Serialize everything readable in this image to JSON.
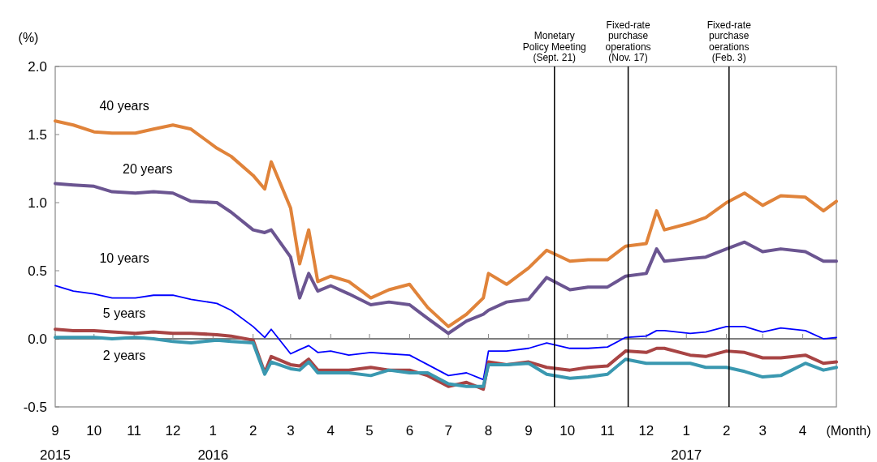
{
  "chart_data": {
    "type": "line",
    "xlabel": "(Month)",
    "ylabel": "(%)",
    "x": [
      "2015-09-01",
      "2015-09-15",
      "2015-10-01",
      "2015-10-15",
      "2015-11-02",
      "2015-11-16",
      "2015-12-01",
      "2015-12-15",
      "2016-01-04",
      "2016-01-15",
      "2016-02-01",
      "2016-02-10",
      "2016-02-15",
      "2016-03-01",
      "2016-03-08",
      "2016-03-15",
      "2016-03-22",
      "2016-04-01",
      "2016-04-15",
      "2016-05-02",
      "2016-05-16",
      "2016-06-01",
      "2016-06-15",
      "2016-07-01",
      "2016-07-15",
      "2016-07-28",
      "2016-08-01",
      "2016-08-15",
      "2016-09-01",
      "2016-09-15",
      "2016-10-03",
      "2016-10-17",
      "2016-11-01",
      "2016-11-15",
      "2016-12-01",
      "2016-12-09",
      "2016-12-15",
      "2017-01-04",
      "2017-01-16",
      "2017-02-01",
      "2017-02-15",
      "2017-03-01",
      "2017-03-15",
      "2017-04-03",
      "2017-04-17",
      "2017-04-27"
    ],
    "series": [
      {
        "name": "40 years",
        "color": "#e0833a",
        "values": [
          1.6,
          1.57,
          1.52,
          1.51,
          1.51,
          1.54,
          1.57,
          1.54,
          1.4,
          1.34,
          1.2,
          1.1,
          1.3,
          0.96,
          0.55,
          0.8,
          0.42,
          0.46,
          0.42,
          0.3,
          0.36,
          0.4,
          0.23,
          0.09,
          0.18,
          0.3,
          0.48,
          0.4,
          0.52,
          0.65,
          0.57,
          0.58,
          0.58,
          0.68,
          0.7,
          0.94,
          0.8,
          0.85,
          0.89,
          1.0,
          1.07,
          0.98,
          1.05,
          1.04,
          0.94,
          1.01
        ]
      },
      {
        "name": "20 years",
        "color": "#6b5591",
        "values": [
          1.14,
          1.13,
          1.12,
          1.08,
          1.07,
          1.08,
          1.07,
          1.01,
          1.0,
          0.93,
          0.8,
          0.78,
          0.8,
          0.6,
          0.3,
          0.48,
          0.35,
          0.39,
          0.33,
          0.25,
          0.27,
          0.25,
          0.15,
          0.04,
          0.13,
          0.18,
          0.21,
          0.27,
          0.29,
          0.45,
          0.36,
          0.38,
          0.38,
          0.46,
          0.48,
          0.66,
          0.57,
          0.59,
          0.6,
          0.66,
          0.71,
          0.64,
          0.66,
          0.64,
          0.57,
          0.57
        ]
      },
      {
        "name": "10 years",
        "color": "#0000ff",
        "values": [
          0.39,
          0.35,
          0.33,
          0.3,
          0.3,
          0.32,
          0.32,
          0.29,
          0.26,
          0.21,
          0.09,
          0.01,
          0.07,
          -0.11,
          -0.08,
          -0.05,
          -0.1,
          -0.09,
          -0.12,
          -0.1,
          -0.11,
          -0.12,
          -0.19,
          -0.27,
          -0.25,
          -0.3,
          -0.09,
          -0.09,
          -0.07,
          -0.03,
          -0.07,
          -0.07,
          -0.06,
          0.01,
          0.02,
          0.06,
          0.06,
          0.04,
          0.05,
          0.09,
          0.09,
          0.05,
          0.08,
          0.06,
          0.0,
          0.01
        ]
      },
      {
        "name": "5 years",
        "color": "#a84444",
        "values": [
          0.07,
          0.06,
          0.06,
          0.05,
          0.04,
          0.05,
          0.04,
          0.04,
          0.03,
          0.02,
          -0.01,
          -0.25,
          -0.13,
          -0.19,
          -0.2,
          -0.15,
          -0.23,
          -0.23,
          -0.23,
          -0.21,
          -0.23,
          -0.23,
          -0.27,
          -0.35,
          -0.32,
          -0.37,
          -0.17,
          -0.19,
          -0.17,
          -0.21,
          -0.23,
          -0.21,
          -0.2,
          -0.09,
          -0.1,
          -0.07,
          -0.07,
          -0.12,
          -0.13,
          -0.09,
          -0.1,
          -0.14,
          -0.14,
          -0.12,
          -0.18,
          -0.17
        ]
      },
      {
        "name": "2 years",
        "color": "#3a98b0",
        "values": [
          0.01,
          0.01,
          0.01,
          0.0,
          0.01,
          0.0,
          -0.02,
          -0.03,
          -0.01,
          -0.02,
          -0.03,
          -0.26,
          -0.17,
          -0.22,
          -0.23,
          -0.17,
          -0.25,
          -0.25,
          -0.25,
          -0.27,
          -0.23,
          -0.25,
          -0.25,
          -0.33,
          -0.35,
          -0.35,
          -0.19,
          -0.19,
          -0.18,
          -0.26,
          -0.29,
          -0.28,
          -0.26,
          -0.15,
          -0.18,
          -0.18,
          -0.18,
          -0.18,
          -0.21,
          -0.21,
          -0.24,
          -0.28,
          -0.27,
          -0.18,
          -0.23,
          -0.21
        ]
      }
    ],
    "xlim": [
      "2015-09-01",
      "2017-04-27"
    ],
    "xticks": [
      {
        "value": "2015-09-01",
        "label": "9\n2015"
      },
      {
        "value": "2015-10-01",
        "label": "10"
      },
      {
        "value": "2015-11-01",
        "label": "11"
      },
      {
        "value": "2015-12-01",
        "label": "12"
      },
      {
        "value": "2016-01-01",
        "label": "1\n2016"
      },
      {
        "value": "2016-02-01",
        "label": "2"
      },
      {
        "value": "2016-03-01",
        "label": "3"
      },
      {
        "value": "2016-04-01",
        "label": "4"
      },
      {
        "value": "2016-05-01",
        "label": "5"
      },
      {
        "value": "2016-06-01",
        "label": "6"
      },
      {
        "value": "2016-07-01",
        "label": "7"
      },
      {
        "value": "2016-08-01",
        "label": "8"
      },
      {
        "value": "2016-09-01",
        "label": "9"
      },
      {
        "value": "2016-10-01",
        "label": "10"
      },
      {
        "value": "2016-11-01",
        "label": "11"
      },
      {
        "value": "2016-12-01",
        "label": "12"
      },
      {
        "value": "2017-01-01",
        "label": "1\n2017"
      },
      {
        "value": "2017-02-01",
        "label": "2"
      },
      {
        "value": "2017-03-01",
        "label": "3"
      },
      {
        "value": "2017-04-01",
        "label": "4"
      }
    ],
    "ylim": [
      -0.5,
      2.0
    ],
    "yticks": [
      {
        "value": -0.5,
        "label": "-0.5"
      },
      {
        "value": 0,
        "label": "0.0"
      },
      {
        "value": 0.5,
        "label": "0.5"
      },
      {
        "value": 1,
        "label": "1.0"
      },
      {
        "value": 1.5,
        "label": "1.5"
      },
      {
        "value": 2,
        "label": "2.0"
      }
    ],
    "ref_lines": [
      {
        "axis": "x",
        "value": "2016-09-21",
        "label": "Monetary\nPolicy Meeting\n(Sept. 21)",
        "color": "#000000"
      },
      {
        "axis": "x",
        "value": "2016-11-17",
        "label": "Fixed-rate\npurchase\noperations\n(Nov. 17)",
        "color": "#000000"
      },
      {
        "axis": "x",
        "value": "2017-02-03",
        "label": "Fixed-rate\npurchase\noerations\n(Feb. 3)",
        "color": "#000000"
      }
    ],
    "grid": false,
    "marker": "none",
    "line_style": "solid"
  }
}
